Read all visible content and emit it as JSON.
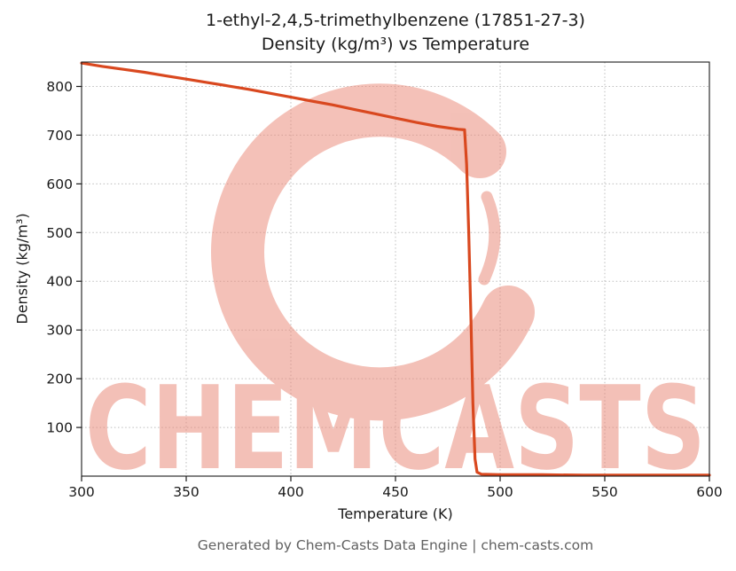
{
  "title": {
    "line1": "1-ethyl-2,4,5-trimethylbenzene (17851-27-3)",
    "line2": "Density (kg/m³) vs Temperature"
  },
  "footer": "Generated by Chem-Casts Data Engine | chem-casts.com",
  "watermark": {
    "text": "CHEMCASTS",
    "color": "#e98877"
  },
  "chart_data": {
    "type": "line",
    "title": "1-ethyl-2,4,5-trimethylbenzene (17851-27-3) — Density (kg/m³) vs Temperature",
    "xlabel": "Temperature (K)",
    "ylabel": "Density (kg/m³)",
    "xlim": [
      300,
      600
    ],
    "ylim": [
      0,
      850
    ],
    "x_ticks": [
      300,
      350,
      400,
      450,
      500,
      550,
      600
    ],
    "y_ticks": [
      100,
      200,
      300,
      400,
      500,
      600,
      700,
      800
    ],
    "grid": true,
    "legend": false,
    "line_color": "#d9481f",
    "series": [
      {
        "name": "Density",
        "points": [
          [
            300,
            848
          ],
          [
            310,
            841
          ],
          [
            320,
            835
          ],
          [
            330,
            829
          ],
          [
            340,
            822
          ],
          [
            350,
            815
          ],
          [
            360,
            808
          ],
          [
            370,
            801
          ],
          [
            380,
            794
          ],
          [
            390,
            786
          ],
          [
            400,
            778
          ],
          [
            410,
            770
          ],
          [
            420,
            762
          ],
          [
            430,
            753
          ],
          [
            440,
            744
          ],
          [
            450,
            735
          ],
          [
            460,
            726
          ],
          [
            470,
            718
          ],
          [
            480,
            712
          ],
          [
            483,
            711
          ],
          [
            484,
            640
          ],
          [
            485,
            500
          ],
          [
            486,
            330
          ],
          [
            487,
            150
          ],
          [
            488,
            35
          ],
          [
            489,
            8
          ],
          [
            491,
            4
          ],
          [
            500,
            3
          ],
          [
            520,
            3
          ],
          [
            540,
            2
          ],
          [
            560,
            2
          ],
          [
            580,
            2
          ],
          [
            600,
            2
          ]
        ]
      }
    ]
  }
}
